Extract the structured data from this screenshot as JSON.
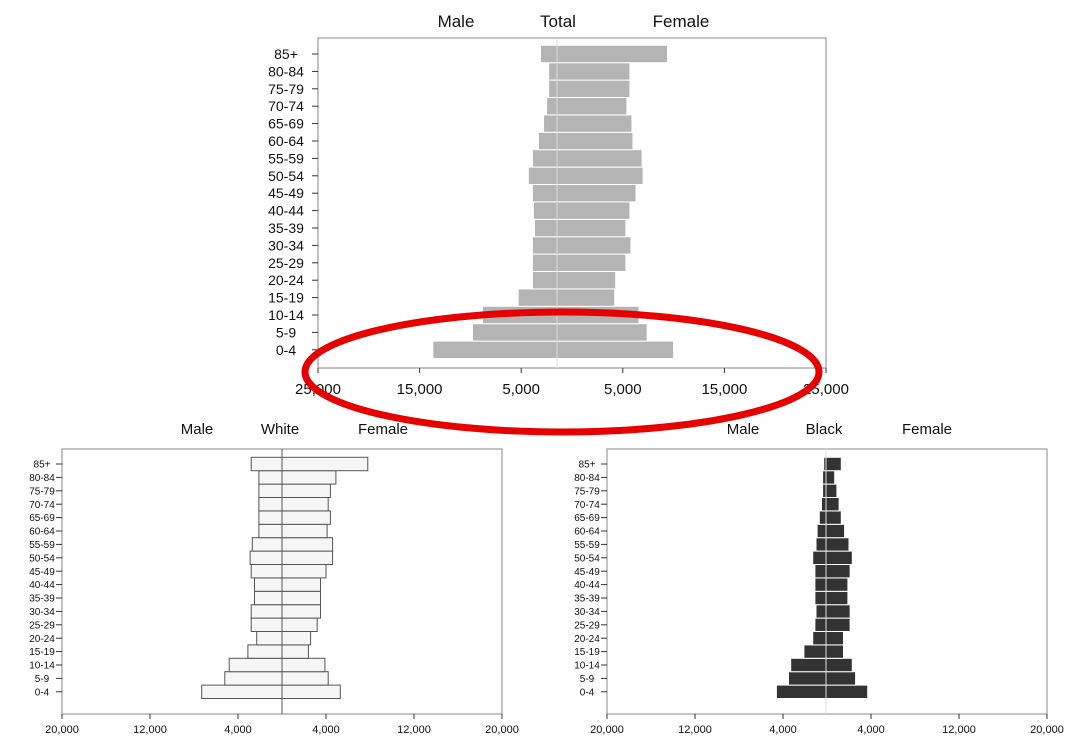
{
  "chart_data": [
    {
      "type": "bar",
      "orientation": "horizontal-population-pyramid",
      "title": "Total",
      "left_label": "Male",
      "right_label": "Female",
      "categories": [
        "0-4",
        "5-9",
        "10-14",
        "15-19",
        "20-24",
        "25-29",
        "30-34",
        "35-39",
        "40-44",
        "45-49",
        "50-54",
        "55-59",
        "60-64",
        "65-69",
        "70-74",
        "75-79",
        "80-84",
        "85+"
      ],
      "series": [
        {
          "name": "Male",
          "values": [
            13700,
            9800,
            8800,
            5300,
            3900,
            3900,
            3900,
            3700,
            3800,
            3900,
            4300,
            3900,
            3300,
            2800,
            2500,
            2300,
            2300,
            3100
          ]
        },
        {
          "name": "Female",
          "values": [
            10000,
            7400,
            6600,
            4200,
            4300,
            5300,
            5800,
            5300,
            5700,
            6300,
            7000,
            6900,
            6000,
            5900,
            5400,
            5700,
            5700,
            9400
          ]
        }
      ],
      "xlim": [
        -25000,
        25000
      ],
      "tick_values": [
        -25000,
        -15000,
        -5000,
        5000,
        15000,
        25000
      ],
      "tick_labels": [
        "25,000",
        "15,000",
        "5,000",
        "5,000",
        "15,000",
        "25,000"
      ],
      "bar_color": "#b4b4b4",
      "annotation": {
        "shape": "ellipse",
        "color": "#e60000"
      }
    },
    {
      "type": "bar",
      "orientation": "horizontal-population-pyramid",
      "title": "White",
      "left_label": "Male",
      "right_label": "Female",
      "categories": [
        "0-4",
        "5-9",
        "10-14",
        "15-19",
        "20-24",
        "25-29",
        "30-34",
        "35-39",
        "40-44",
        "45-49",
        "50-54",
        "55-59",
        "60-64",
        "65-69",
        "70-74",
        "75-79",
        "80-84",
        "85+"
      ],
      "series": [
        {
          "name": "Male",
          "values": [
            7300,
            5200,
            4800,
            3100,
            2300,
            2800,
            2800,
            2500,
            2500,
            2800,
            2900,
            2700,
            2100,
            2100,
            2100,
            2100,
            2100,
            2800
          ]
        },
        {
          "name": "Female",
          "values": [
            5300,
            4200,
            3900,
            2400,
            2600,
            3200,
            3500,
            3500,
            3500,
            4000,
            4600,
            4600,
            4100,
            4400,
            4200,
            4400,
            4900,
            7800
          ]
        }
      ],
      "xlim": [
        -20000,
        20000
      ],
      "tick_values": [
        -20000,
        -12000,
        -4000,
        4000,
        12000,
        20000
      ],
      "tick_labels": [
        "20,000",
        "12,000",
        "4,000",
        "4,000",
        "12,000",
        "20,000"
      ],
      "bar_color": "#f6f6f6"
    },
    {
      "type": "bar",
      "orientation": "horizontal-population-pyramid",
      "title": "Black",
      "left_label": "Male",
      "right_label": "Female",
      "categories": [
        "0-4",
        "5-9",
        "10-14",
        "15-19",
        "20-24",
        "25-29",
        "30-34",
        "35-39",
        "40-44",
        "45-49",
        "50-54",
        "55-59",
        "60-64",
        "65-69",
        "70-74",
        "75-79",
        "80-84",
        "85+"
      ],
      "series": [
        {
          "name": "Male",
          "values": [
            4600,
            3500,
            3300,
            2100,
            1300,
            1100,
            1000,
            1100,
            1100,
            1100,
            1300,
            1000,
            900,
            700,
            500,
            400,
            400,
            300
          ]
        },
        {
          "name": "Female",
          "values": [
            3700,
            2600,
            2300,
            1500,
            1500,
            2100,
            2100,
            1900,
            1900,
            2100,
            2300,
            2000,
            1600,
            1300,
            1100,
            900,
            700,
            1300
          ]
        }
      ],
      "xlim": [
        -20000,
        20000
      ],
      "tick_values": [
        -20000,
        -12000,
        -4000,
        4000,
        12000,
        20000
      ],
      "tick_labels": [
        "20,000",
        "12,000",
        "4,000",
        "4,000",
        "12,000",
        "20,000"
      ],
      "bar_color": "#333333"
    }
  ]
}
